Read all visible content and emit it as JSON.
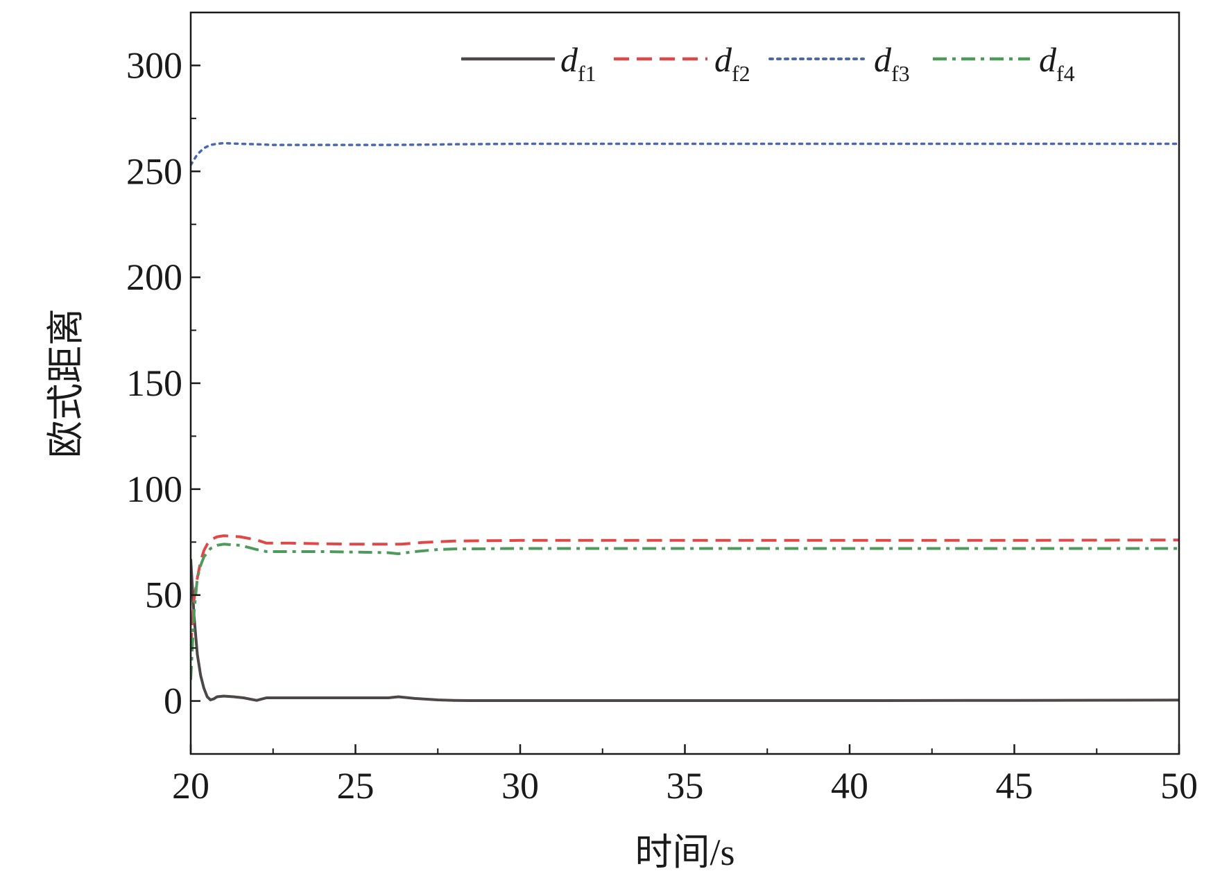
{
  "chart_data": {
    "type": "line",
    "title": "",
    "xlabel": "时间/s",
    "ylabel": "欧式距离",
    "xlim": [
      20,
      50
    ],
    "ylim": [
      -25,
      325
    ],
    "xticks": [
      20,
      25,
      30,
      35,
      40,
      45,
      50
    ],
    "yticks": [
      0,
      50,
      100,
      150,
      200,
      250,
      300
    ],
    "xtick_labels": [
      "20",
      "25",
      "30",
      "35",
      "40",
      "45",
      "50"
    ],
    "ytick_labels": [
      "0",
      "50",
      "100",
      "150",
      "200",
      "250",
      "300"
    ],
    "grid": false,
    "legend_position": "top",
    "series": [
      {
        "name": "d_f1",
        "label_main": "d",
        "label_sub": "f1",
        "color": "#4d4747",
        "style": "solid",
        "x": [
          20.0,
          20.1,
          20.2,
          20.3,
          20.4,
          20.5,
          20.6,
          20.7,
          20.8,
          21.0,
          21.3,
          21.6,
          22.0,
          22.3,
          23.0,
          24.0,
          25.0,
          26.0,
          26.3,
          26.8,
          27.5,
          28.0,
          28.5,
          30.0,
          35.0,
          40.0,
          45.0,
          50.0
        ],
        "y": [
          67,
          40,
          22,
          12,
          6,
          2,
          0.5,
          1,
          2,
          2.3,
          2,
          1.5,
          0.3,
          1.5,
          1.5,
          1.5,
          1.5,
          1.5,
          2,
          1.2,
          0.5,
          0.3,
          0.2,
          0.2,
          0.2,
          0.2,
          0.3,
          0.4
        ]
      },
      {
        "name": "d_f2",
        "label_main": "d",
        "label_sub": "f2",
        "color": "#e04848",
        "style": "dashed",
        "x": [
          20.0,
          20.1,
          20.2,
          20.3,
          20.4,
          20.5,
          20.6,
          20.8,
          21.0,
          21.5,
          22.0,
          22.3,
          23.0,
          24.0,
          25.0,
          26.0,
          26.4,
          27.0,
          28.0,
          30.0,
          35.0,
          40.0,
          45.0,
          50.0
        ],
        "y": [
          25,
          48,
          58,
          66,
          71,
          74,
          76,
          77.5,
          78,
          77.5,
          76,
          74.5,
          74.5,
          74.2,
          74,
          74,
          74,
          74.8,
          75.5,
          75.8,
          75.8,
          75.8,
          75.8,
          76
        ]
      },
      {
        "name": "d_f3",
        "label_main": "d",
        "label_sub": "f3",
        "color": "#4a68b0",
        "style": "dotted",
        "x": [
          20.0,
          20.2,
          20.4,
          20.6,
          20.8,
          21.0,
          21.5,
          22.0,
          22.5,
          23.0,
          24.0,
          25.0,
          26.0,
          27.0,
          28.0,
          30.0,
          35.0,
          40.0,
          45.0,
          50.0
        ],
        "y": [
          253,
          258,
          261,
          262.5,
          263,
          263.3,
          263,
          262.8,
          262.5,
          262.5,
          262.5,
          262.5,
          262.5,
          262.6,
          262.8,
          263,
          263,
          263,
          263,
          263
        ]
      },
      {
        "name": "d_f4",
        "label_main": "d",
        "label_sub": "f4",
        "color": "#4d9a5c",
        "style": "dashdot",
        "x": [
          20.0,
          20.1,
          20.2,
          20.3,
          20.4,
          20.5,
          20.6,
          20.8,
          21.0,
          21.5,
          22.0,
          22.3,
          23.0,
          24.0,
          25.0,
          26.0,
          26.3,
          26.8,
          27.5,
          28.0,
          30.0,
          35.0,
          40.0,
          45.0,
          50.0
        ],
        "y": [
          10,
          42,
          58,
          64,
          68,
          70,
          72,
          73.5,
          74,
          73.5,
          71.5,
          70.5,
          70.5,
          70.5,
          70.3,
          70,
          69.5,
          70.5,
          71.5,
          71.8,
          72,
          72,
          72,
          72,
          72
        ]
      }
    ]
  }
}
